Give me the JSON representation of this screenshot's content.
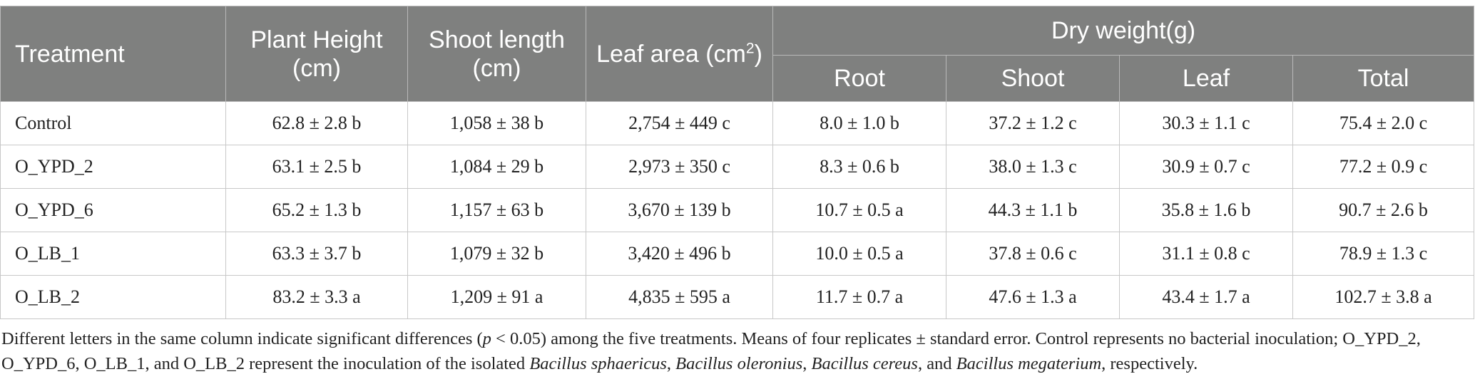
{
  "table": {
    "headers": {
      "treatment": "Treatment",
      "plant_height": "Plant Height (cm)",
      "shoot_length": "Shoot length (cm)",
      "leaf_area": "Leaf area (cm",
      "leaf_area_sup": "2",
      "leaf_area_close": ")",
      "dry_weight": "Dry weight(g)",
      "root": "Root",
      "shoot": "Shoot",
      "leaf": "Leaf",
      "total": "Total"
    },
    "rows": [
      [
        "Control",
        "62.8 ± 2.8 b",
        "1,058 ± 38 b",
        "2,754 ± 449 c",
        "8.0 ± 1.0 b",
        "37.2 ± 1.2 c",
        "30.3 ± 1.1 c",
        "75.4 ± 2.0 c"
      ],
      [
        "O_YPD_2",
        "63.1 ± 2.5 b",
        "1,084 ± 29 b",
        "2,973 ± 350 c",
        "8.3 ± 0.6 b",
        "38.0 ± 1.3 c",
        "30.9 ± 0.7 c",
        "77.2 ± 0.9 c"
      ],
      [
        "O_YPD_6",
        "65.2 ± 1.3 b",
        "1,157 ± 63 b",
        "3,670 ± 139 b",
        "10.7 ± 0.5 a",
        "44.3 ± 1.1 b",
        "35.8 ± 1.6 b",
        "90.7 ± 2.6 b"
      ],
      [
        "O_LB_1",
        "63.3 ± 3.7 b",
        "1,079 ± 32 b",
        "3,420 ± 496 b",
        "10.0 ± 0.5 a",
        "37.8 ± 0.6 c",
        "31.1 ± 0.8 c",
        "78.9 ± 1.3 c"
      ],
      [
        "O_LB_2",
        "83.2 ± 3.3 a",
        "1,209 ± 91 a",
        "4,835 ± 595 a",
        "11.7 ± 0.7 a",
        "47.6 ± 1.3 a",
        "43.4 ± 1.7 a",
        "102.7 ± 3.8 a"
      ]
    ]
  },
  "footnote": {
    "p1": "Different letters in the same column indicate significant differences (",
    "p_italic": "p",
    "p2": " < 0.05) among the five treatments. Means of four replicates ± standard error. Control represents no bacterial inoculation; O_YPD_2, O_YPD_6, O_LB_1, and O_LB_2 represent the inoculation of the isolated ",
    "sp1": "Bacillus sphaericus",
    "sep1": ", ",
    "sp2": "Bacillus oleronius",
    "sep2": ", ",
    "sp3": "Bacillus cereus",
    "sep3": ", and ",
    "sp4": "Bacillus megaterium",
    "end": ", respectively."
  }
}
